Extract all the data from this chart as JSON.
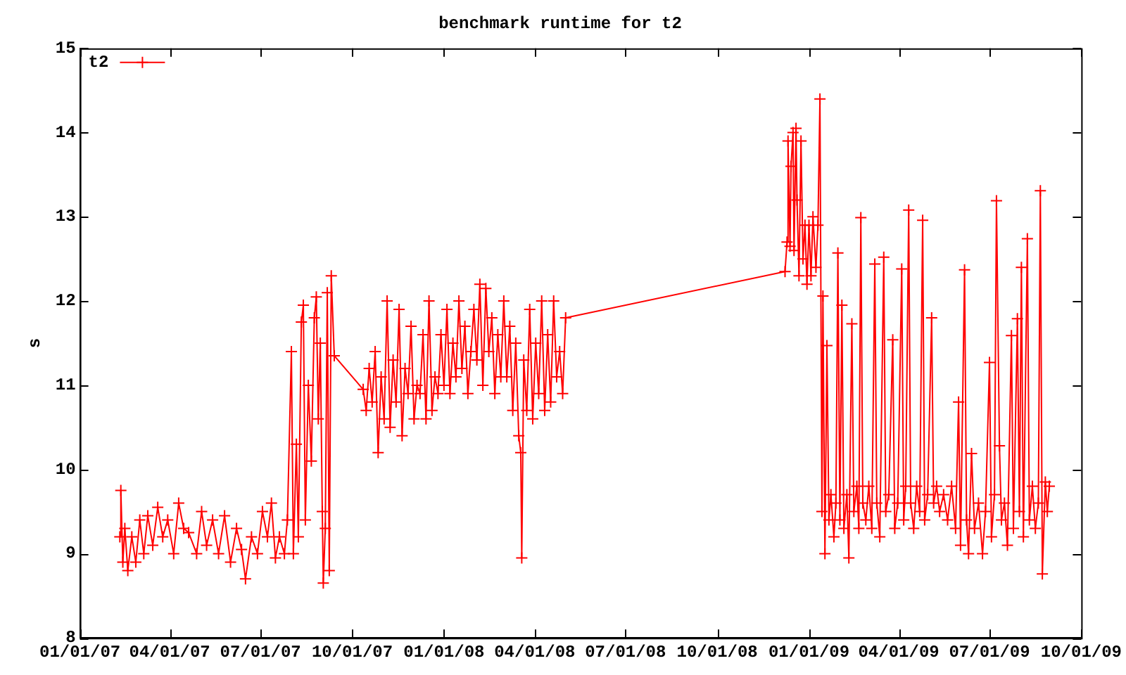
{
  "chart_data": {
    "type": "line",
    "title": "benchmark runtime for t2",
    "ylabel": "s",
    "legend": "top left",
    "marker": "cross",
    "line_style": "solid",
    "grid": false,
    "xlim": [
      "2007-01-01",
      "2009-10-01"
    ],
    "xticks": [
      {
        "value": "2007-01-01",
        "label": "01/01/07"
      },
      {
        "value": "2007-04-01",
        "label": "04/01/07"
      },
      {
        "value": "2007-07-01",
        "label": "07/01/07"
      },
      {
        "value": "2007-10-01",
        "label": "10/01/07"
      },
      {
        "value": "2008-01-01",
        "label": "01/01/08"
      },
      {
        "value": "2008-04-01",
        "label": "04/01/08"
      },
      {
        "value": "2008-07-01",
        "label": "07/01/08"
      },
      {
        "value": "2008-10-01",
        "label": "10/01/08"
      },
      {
        "value": "2009-01-01",
        "label": "01/01/09"
      },
      {
        "value": "2009-04-01",
        "label": "04/01/09"
      },
      {
        "value": "2009-07-01",
        "label": "07/01/09"
      },
      {
        "value": "2009-10-01",
        "label": "10/01/09"
      }
    ],
    "ylim": [
      8,
      15
    ],
    "yticks": [
      8,
      9,
      10,
      11,
      12,
      13,
      14,
      15
    ],
    "x": [
      "2007-02-10",
      "2007-02-11",
      "2007-02-13",
      "2007-02-15",
      "2007-02-18",
      "2007-02-22",
      "2007-02-26",
      "2007-03-02",
      "2007-03-06",
      "2007-03-10",
      "2007-03-15",
      "2007-03-20",
      "2007-03-25",
      "2007-03-30",
      "2007-04-05",
      "2007-04-10",
      "2007-04-15",
      "2007-04-20",
      "2007-04-28",
      "2007-05-03",
      "2007-05-08",
      "2007-05-14",
      "2007-05-20",
      "2007-05-26",
      "2007-06-01",
      "2007-06-07",
      "2007-06-12",
      "2007-06-16",
      "2007-06-22",
      "2007-06-28",
      "2007-07-03",
      "2007-07-08",
      "2007-07-12",
      "2007-07-16",
      "2007-07-20",
      "2007-07-25",
      "2007-07-28",
      "2007-08-01",
      "2007-08-03",
      "2007-08-06",
      "2007-08-08",
      "2007-08-11",
      "2007-08-13",
      "2007-08-15",
      "2007-08-18",
      "2007-08-21",
      "2007-08-24",
      "2007-08-26",
      "2007-08-28",
      "2007-08-30",
      "2007-09-01",
      "2007-09-02",
      "2007-09-04",
      "2007-09-06",
      "2007-09-08",
      "2007-09-10",
      "2007-09-13",
      "2007-10-12",
      "2007-10-15",
      "2007-10-18",
      "2007-10-21",
      "2007-10-24",
      "2007-10-27",
      "2007-10-30",
      "2007-11-02",
      "2007-11-05",
      "2007-11-08",
      "2007-11-11",
      "2007-11-14",
      "2007-11-17",
      "2007-11-20",
      "2007-11-23",
      "2007-11-26",
      "2007-11-29",
      "2007-12-02",
      "2007-12-05",
      "2007-12-08",
      "2007-12-11",
      "2007-12-14",
      "2007-12-17",
      "2007-12-20",
      "2007-12-23",
      "2007-12-26",
      "2007-12-29",
      "2008-01-01",
      "2008-01-04",
      "2008-01-07",
      "2008-01-10",
      "2008-01-13",
      "2008-01-16",
      "2008-01-19",
      "2008-01-22",
      "2008-01-25",
      "2008-01-28",
      "2008-01-31",
      "2008-02-03",
      "2008-02-06",
      "2008-02-09",
      "2008-02-12",
      "2008-02-15",
      "2008-02-18",
      "2008-02-21",
      "2008-02-24",
      "2008-02-27",
      "2008-03-01",
      "2008-03-04",
      "2008-03-07",
      "2008-03-10",
      "2008-03-13",
      "2008-03-16",
      "2008-03-18",
      "2008-03-19",
      "2008-03-21",
      "2008-03-24",
      "2008-03-27",
      "2008-03-30",
      "2008-04-02",
      "2008-04-05",
      "2008-04-08",
      "2008-04-11",
      "2008-04-14",
      "2008-04-17",
      "2008-04-20",
      "2008-04-23",
      "2008-04-26",
      "2008-04-29",
      "2008-05-02",
      "2008-12-08",
      "2008-12-10",
      "2008-12-11",
      "2008-12-13",
      "2008-12-14",
      "2008-12-16",
      "2008-12-17",
      "2008-12-19",
      "2008-12-20",
      "2008-12-22",
      "2008-12-24",
      "2008-12-26",
      "2008-12-28",
      "2008-12-30",
      "2009-01-01",
      "2009-01-03",
      "2009-01-05",
      "2009-01-08",
      "2009-01-10",
      "2009-01-12",
      "2009-01-14",
      "2009-01-15",
      "2009-01-17",
      "2009-01-19",
      "2009-01-21",
      "2009-01-23",
      "2009-01-26",
      "2009-01-28",
      "2009-01-30",
      "2009-02-01",
      "2009-02-03",
      "2009-02-05",
      "2009-02-08",
      "2009-02-10",
      "2009-02-13",
      "2009-02-15",
      "2009-02-18",
      "2009-02-20",
      "2009-02-22",
      "2009-02-24",
      "2009-02-27",
      "2009-03-02",
      "2009-03-05",
      "2009-03-08",
      "2009-03-10",
      "2009-03-13",
      "2009-03-17",
      "2009-03-19",
      "2009-03-22",
      "2009-03-26",
      "2009-03-28",
      "2009-03-31",
      "2009-04-04",
      "2009-04-06",
      "2009-04-08",
      "2009-04-11",
      "2009-04-13",
      "2009-04-16",
      "2009-04-19",
      "2009-04-22",
      "2009-04-25",
      "2009-04-27",
      "2009-04-30",
      "2009-05-04",
      "2009-05-06",
      "2009-05-09",
      "2009-05-12",
      "2009-05-16",
      "2009-05-20",
      "2009-05-24",
      "2009-05-28",
      "2009-05-31",
      "2009-06-02",
      "2009-06-06",
      "2009-06-08",
      "2009-06-10",
      "2009-06-13",
      "2009-06-16",
      "2009-06-20",
      "2009-06-24",
      "2009-06-27",
      "2009-07-01",
      "2009-07-03",
      "2009-07-06",
      "2009-07-08",
      "2009-07-11",
      "2009-07-13",
      "2009-07-16",
      "2009-07-19",
      "2009-07-23",
      "2009-07-25",
      "2009-07-29",
      "2009-07-31",
      "2009-08-02",
      "2009-08-04",
      "2009-08-08",
      "2009-08-10",
      "2009-08-13",
      "2009-08-16",
      "2009-08-19",
      "2009-08-21",
      "2009-08-23",
      "2009-08-26",
      "2009-08-28",
      "2009-08-30"
    ],
    "series": [
      {
        "name": "t2",
        "color": "#ff0000",
        "values": [
          9.2,
          9.75,
          8.9,
          9.3,
          8.8,
          9.2,
          8.9,
          9.4,
          9.0,
          9.45,
          9.1,
          9.55,
          9.2,
          9.4,
          9.0,
          9.6,
          9.3,
          9.25,
          9.0,
          9.5,
          9.1,
          9.4,
          9.0,
          9.45,
          8.9,
          9.3,
          9.05,
          8.7,
          9.2,
          9.0,
          9.5,
          9.2,
          9.6,
          8.95,
          9.2,
          9.0,
          9.4,
          11.4,
          9.0,
          10.3,
          9.2,
          11.75,
          11.95,
          9.4,
          11.0,
          10.1,
          11.8,
          12.05,
          10.6,
          11.5,
          9.5,
          8.65,
          9.3,
          12.1,
          8.8,
          12.3,
          11.35,
          10.95,
          10.7,
          11.2,
          10.8,
          11.4,
          10.2,
          11.1,
          10.6,
          12.0,
          10.5,
          11.3,
          10.8,
          11.9,
          10.4,
          11.2,
          10.9,
          11.7,
          10.6,
          11.0,
          10.9,
          11.6,
          10.6,
          12.0,
          10.7,
          11.1,
          10.9,
          11.6,
          11.0,
          11.9,
          10.9,
          11.5,
          11.1,
          12.0,
          11.2,
          11.7,
          10.9,
          11.4,
          11.9,
          11.3,
          12.2,
          11.0,
          12.15,
          11.4,
          11.8,
          10.9,
          11.6,
          11.1,
          12.0,
          11.1,
          11.7,
          10.7,
          11.5,
          10.4,
          10.2,
          8.95,
          11.3,
          10.7,
          11.9,
          10.6,
          11.5,
          10.9,
          12.0,
          10.7,
          11.6,
          10.8,
          12.0,
          11.1,
          11.4,
          10.9,
          11.8,
          12.35,
          12.7,
          13.9,
          12.65,
          13.6,
          14.0,
          12.6,
          14.05,
          13.2,
          12.3,
          13.9,
          12.5,
          12.9,
          12.2,
          12.9,
          12.3,
          13.0,
          12.4,
          12.9,
          14.4,
          9.5,
          12.06,
          9.0,
          11.47,
          9.4,
          9.7,
          9.2,
          9.6,
          12.57,
          9.4,
          11.95,
          9.3,
          9.7,
          8.95,
          11.73,
          9.5,
          9.8,
          9.3,
          12.99,
          9.6,
          9.4,
          9.8,
          9.3,
          12.44,
          9.6,
          9.2,
          12.52,
          9.5,
          9.7,
          11.54,
          9.3,
          9.6,
          12.38,
          9.4,
          9.8,
          13.08,
          9.6,
          9.3,
          9.8,
          9.5,
          12.96,
          9.4,
          9.7,
          11.8,
          9.6,
          9.8,
          9.5,
          9.7,
          9.4,
          9.8,
          9.3,
          10.8,
          9.1,
          12.37,
          9.4,
          9.0,
          10.19,
          9.3,
          9.6,
          9.0,
          9.5,
          11.27,
          9.2,
          9.7,
          13.19,
          10.28,
          9.4,
          9.6,
          9.1,
          11.59,
          9.3,
          11.79,
          9.5,
          12.4,
          9.2,
          12.74,
          9.4,
          9.8,
          9.3,
          9.6,
          13.31,
          8.76,
          9.85,
          9.5,
          9.8
        ]
      }
    ]
  }
}
